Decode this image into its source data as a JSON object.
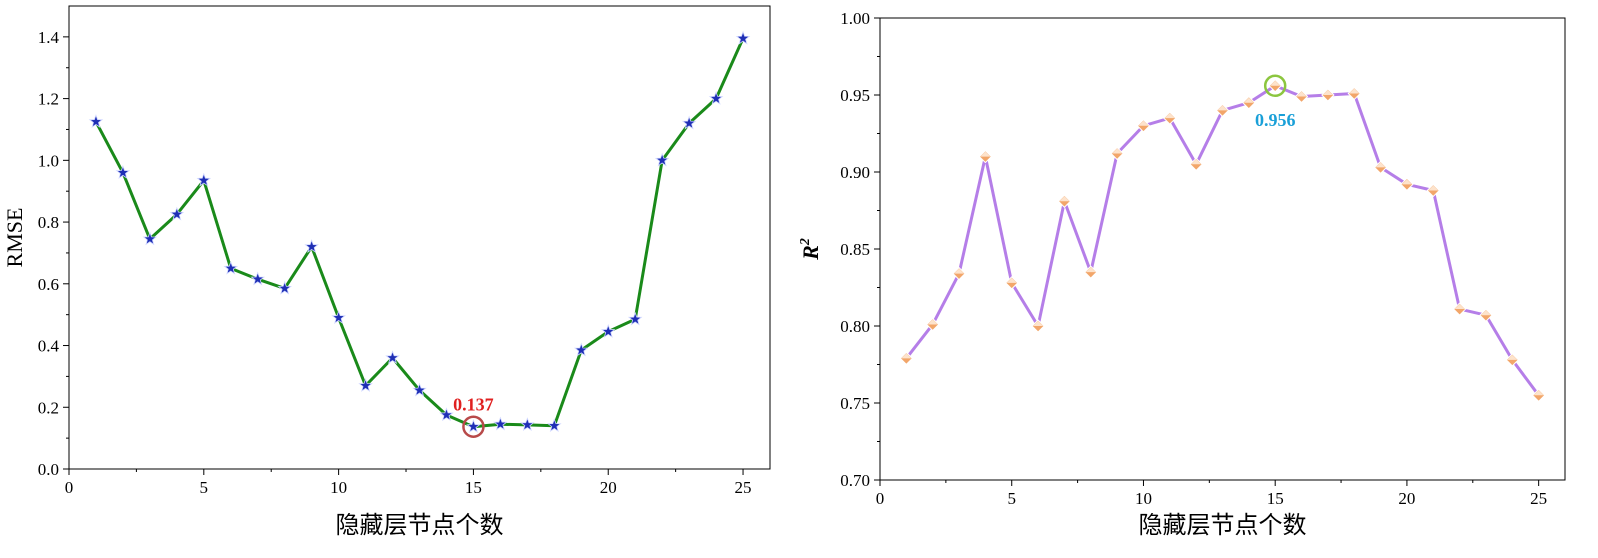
{
  "chart_data": [
    {
      "type": "line",
      "title": "",
      "xlabel": "隐藏层节点个数",
      "ylabel": "RMSE",
      "xlim": [
        0,
        26
      ],
      "ylim": [
        0,
        1.5
      ],
      "xticks": [
        0,
        5,
        10,
        15,
        20,
        25
      ],
      "xtick_labels": [
        "0",
        "5",
        "10",
        "15",
        "20",
        "25"
      ],
      "yticks": [
        0,
        0.2,
        0.4,
        0.6,
        0.8,
        1.0,
        1.2,
        1.4
      ],
      "ytick_labels": [
        "0.0",
        "0.2",
        "0.4",
        "0.6",
        "0.8",
        "1.0",
        "1.2",
        "1.4"
      ],
      "grid": false,
      "line_color": "#1a8a1a",
      "marker": "star",
      "marker_color": "#1f2fb5",
      "series": [
        {
          "x": [
            1,
            2,
            3,
            4,
            5,
            6,
            7,
            8,
            9,
            10,
            11,
            12,
            13,
            14,
            15,
            16,
            17,
            18,
            19,
            20,
            21,
            22,
            23,
            24,
            25
          ],
          "values": [
            1.125,
            0.96,
            0.745,
            0.825,
            0.935,
            0.65,
            0.615,
            0.585,
            0.72,
            0.49,
            0.27,
            0.36,
            0.255,
            0.175,
            0.137,
            0.145,
            0.143,
            0.14,
            0.385,
            0.445,
            0.485,
            1.0,
            1.12,
            1.2,
            1.395
          ]
        }
      ],
      "annotation": {
        "text": "0.137",
        "x": 15,
        "y": 0.137,
        "color": "#e02020",
        "circle_color": "#b84a4a"
      }
    },
    {
      "type": "line",
      "title": "",
      "xlabel": "隐藏层节点个数",
      "ylabel": "R",
      "ylabel_sup": "2",
      "xlim": [
        0,
        26
      ],
      "ylim": [
        0.7,
        1.0
      ],
      "xticks": [
        0,
        5,
        10,
        15,
        20,
        25
      ],
      "xtick_labels": [
        "0",
        "5",
        "10",
        "15",
        "20",
        "25"
      ],
      "yticks": [
        0.7,
        0.75,
        0.8,
        0.85,
        0.9,
        0.95,
        1.0
      ],
      "ytick_labels": [
        "0.70",
        "0.75",
        "0.80",
        "0.85",
        "0.90",
        "0.95",
        "1.00"
      ],
      "grid": false,
      "line_color": "#b57ee8",
      "marker": "diamond",
      "marker_color": "#f2a66a",
      "series": [
        {
          "x": [
            1,
            2,
            3,
            4,
            5,
            6,
            7,
            8,
            9,
            10,
            11,
            12,
            13,
            14,
            15,
            16,
            17,
            18,
            19,
            20,
            21,
            22,
            23,
            24,
            25
          ],
          "values": [
            0.779,
            0.801,
            0.834,
            0.91,
            0.828,
            0.8,
            0.881,
            0.835,
            0.912,
            0.93,
            0.935,
            0.905,
            0.94,
            0.945,
            0.956,
            0.949,
            0.95,
            0.951,
            0.903,
            0.892,
            0.888,
            0.811,
            0.807,
            0.778,
            0.755
          ]
        }
      ],
      "annotation": {
        "text": "0.956",
        "x": 15,
        "y": 0.956,
        "color": "#1aa0d8",
        "circle_color": "#8cc63f"
      }
    }
  ]
}
